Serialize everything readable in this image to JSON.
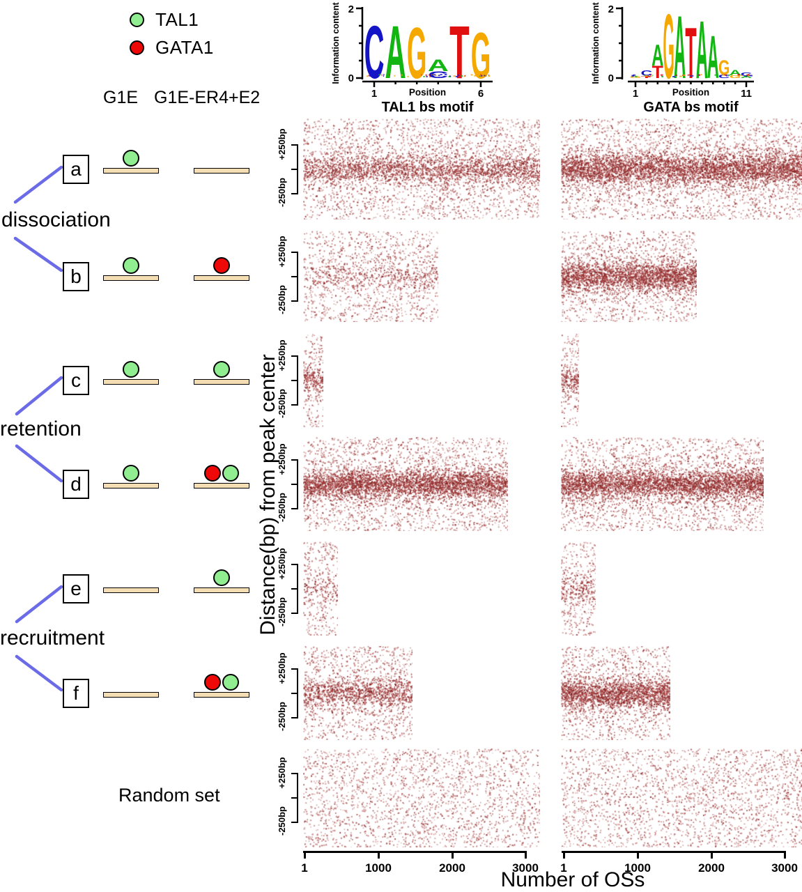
{
  "legend": {
    "items": [
      {
        "label": "TAL1",
        "color": "#90ee90"
      },
      {
        "label": "GATA1",
        "color": "#ee0808"
      }
    ]
  },
  "headers": {
    "col1": "G1E",
    "col2": "G1E-ER4+E2"
  },
  "groups": [
    {
      "label": "dissociation",
      "rows": [
        "a",
        "b"
      ]
    },
    {
      "label": "retention",
      "rows": [
        "c",
        "d"
      ]
    },
    {
      "label": "recruitment",
      "rows": [
        "e",
        "f"
      ]
    }
  ],
  "rows": [
    {
      "id": "a",
      "g1e": [
        "TAL1"
      ],
      "g1e_er4": []
    },
    {
      "id": "b",
      "g1e": [
        "TAL1"
      ],
      "g1e_er4": [
        "GATA1"
      ]
    },
    {
      "id": "c",
      "g1e": [
        "TAL1"
      ],
      "g1e_er4": [
        "TAL1"
      ]
    },
    {
      "id": "d",
      "g1e": [
        "TAL1"
      ],
      "g1e_er4": [
        "GATA1",
        "TAL1"
      ]
    },
    {
      "id": "e",
      "g1e": [],
      "g1e_er4": [
        "TAL1"
      ]
    },
    {
      "id": "f",
      "g1e": [],
      "g1e_er4": [
        "GATA1",
        "TAL1"
      ]
    }
  ],
  "random_set_label": "Random set",
  "logos": [
    {
      "title": "TAL1 bs motif",
      "xlabel": "Position",
      "ylabel": "Information content",
      "ytick_top": "2",
      "ytick_bottom": "0",
      "xtick_left": "1",
      "xtick_right": "6",
      "stacks": [
        [
          {
            "c": "C",
            "col": "#1515c8",
            "h": 1.55
          }
        ],
        [
          {
            "c": "A",
            "col": "#12b512",
            "h": 1.55
          }
        ],
        [
          {
            "c": "G",
            "col": "#f5a800",
            "h": 1.5
          }
        ],
        [
          {
            "c": "A",
            "col": "#12b512",
            "h": 0.34
          },
          {
            "c": "C",
            "col": "#1515c8",
            "h": 0.2
          }
        ],
        [
          {
            "c": "T",
            "col": "#e01010",
            "h": 1.55
          }
        ],
        [
          {
            "c": "G",
            "col": "#f5a800",
            "h": 1.35
          }
        ]
      ]
    },
    {
      "title": "GATA bs motif",
      "xlabel": "Position",
      "ylabel": "Information content",
      "ytick_top": "2",
      "ytick_bottom": "0",
      "xtick_left": "1",
      "xtick_right": "11",
      "stacks": [
        [
          {
            "c": "G",
            "col": "#f5a800",
            "h": 0.07
          }
        ],
        [
          {
            "c": "C",
            "col": "#1515c8",
            "h": 0.16
          },
          {
            "c": "T",
            "col": "#e01010",
            "h": 0.07
          }
        ],
        [
          {
            "c": "A",
            "col": "#12b512",
            "h": 0.62
          },
          {
            "c": "T",
            "col": "#e01010",
            "h": 0.36
          }
        ],
        [
          {
            "c": "G",
            "col": "#f5a800",
            "h": 1.9
          }
        ],
        [
          {
            "c": "A",
            "col": "#12b512",
            "h": 1.85
          }
        ],
        [
          {
            "c": "T",
            "col": "#e01010",
            "h": 1.5
          }
        ],
        [
          {
            "c": "A",
            "col": "#12b512",
            "h": 1.7
          }
        ],
        [
          {
            "c": "A",
            "col": "#12b512",
            "h": 1.25
          }
        ],
        [
          {
            "c": "G",
            "col": "#f5a800",
            "h": 0.42
          },
          {
            "c": "C",
            "col": "#1515c8",
            "h": 0.1
          }
        ],
        [
          {
            "c": "A",
            "col": "#12b512",
            "h": 0.16
          },
          {
            "c": "G",
            "col": "#f5a800",
            "h": 0.08
          }
        ],
        [
          {
            "c": "C",
            "col": "#1515c8",
            "h": 0.1
          },
          {
            "c": "A",
            "col": "#12b512",
            "h": 0.06
          }
        ]
      ]
    }
  ],
  "chart_data": {
    "type": "scatter",
    "description": "Density dot plots of open chromatin sites: distance from peak center vs number of OSs, for TAL1 and GATA motif columns across occupancy classes a-f and a random set.",
    "columns": [
      "TAL1 bs motif",
      "GATA bs motif"
    ],
    "row_order": [
      "a",
      "b",
      "c",
      "d",
      "e",
      "f",
      "Random set"
    ],
    "x_axis": {
      "label": "Number of OSs",
      "ticks": [
        "1",
        "1000",
        "2000",
        "3000"
      ],
      "range": [
        1,
        3250
      ]
    },
    "y_axis": {
      "label": "Distance(bp) from peak center",
      "tick_top": "+250bp",
      "tick_bottom": "-250bp",
      "range_bp": [
        -500,
        500
      ]
    },
    "dot_color_palette": [
      "#cf8f8f",
      "#c47979",
      "#b25e5e",
      "#a34646",
      "#933232"
    ],
    "band_color_palette": [
      "#a33b3b",
      "#8e2626",
      "#7e1d1d",
      "#b04848"
    ],
    "panels": [
      {
        "row": "a",
        "column": "TAL1",
        "max_os": 3250,
        "width_frac": 1.0,
        "center_band": "moderate"
      },
      {
        "row": "a",
        "column": "GATA",
        "max_os": 3100,
        "width_frac": 1.0,
        "center_band": "strong"
      },
      {
        "row": "b",
        "column": "TAL1",
        "max_os": 1850,
        "width_frac": 0.57,
        "center_band": "faint"
      },
      {
        "row": "b",
        "column": "GATA",
        "max_os": 1750,
        "width_frac": 0.565,
        "center_band": "strong"
      },
      {
        "row": "c",
        "column": "TAL1",
        "max_os": 270,
        "width_frac": 0.085,
        "center_band": "moderate"
      },
      {
        "row": "c",
        "column": "GATA",
        "max_os": 230,
        "width_frac": 0.075,
        "center_band": "moderate"
      },
      {
        "row": "d",
        "column": "TAL1",
        "max_os": 2800,
        "width_frac": 0.865,
        "center_band": "strong"
      },
      {
        "row": "d",
        "column": "GATA",
        "max_os": 2600,
        "width_frac": 0.84,
        "center_band": "strong"
      },
      {
        "row": "e",
        "column": "TAL1",
        "max_os": 480,
        "width_frac": 0.148,
        "center_band": "faint"
      },
      {
        "row": "e",
        "column": "GATA",
        "max_os": 450,
        "width_frac": 0.145,
        "center_band": "weak"
      },
      {
        "row": "f",
        "column": "TAL1",
        "max_os": 1500,
        "width_frac": 0.462,
        "center_band": "moderate"
      },
      {
        "row": "f",
        "column": "GATA",
        "max_os": 1400,
        "width_frac": 0.455,
        "center_band": "strong"
      },
      {
        "row": "Random set",
        "column": "TAL1",
        "max_os": 3250,
        "width_frac": 1.0,
        "center_band": "none"
      },
      {
        "row": "Random set",
        "column": "GATA",
        "max_os": 3100,
        "width_frac": 1.0,
        "center_band": "none"
      }
    ]
  }
}
